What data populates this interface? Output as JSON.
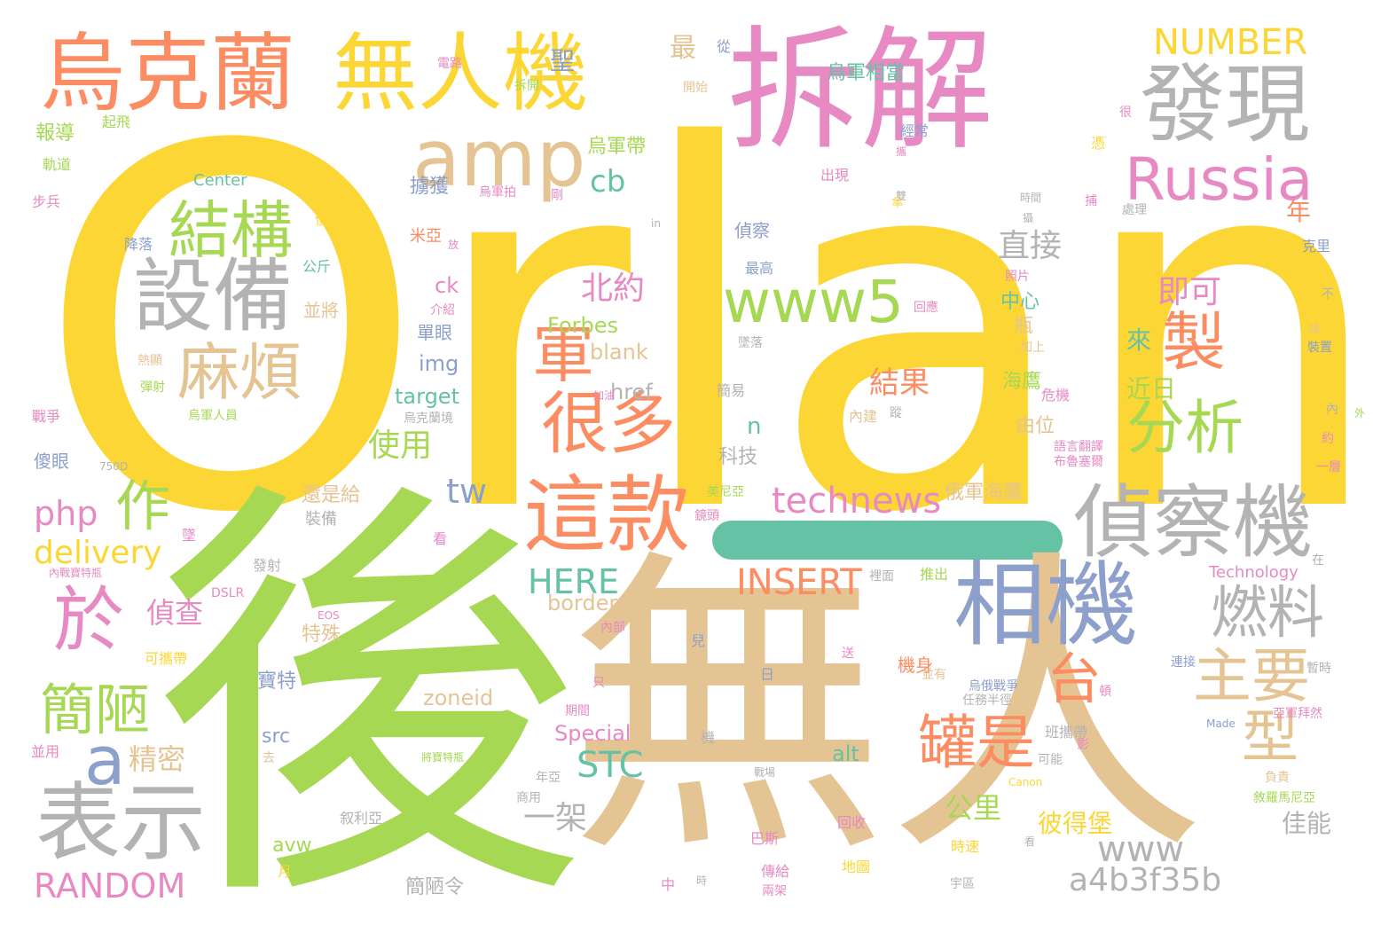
{
  "palette": {
    "yellow": "#fcd634",
    "green": "#a6d854",
    "tan": "#e5c494",
    "pink": "#e78ac3",
    "gray": "#b3b3b3",
    "orange": "#fc8d62",
    "blue": "#8da0cb",
    "teal": "#66c2a5"
  },
  "words": [
    {
      "text": "Orlan",
      "color": "yellow"
    },
    {
      "text": "後",
      "color": "green"
    },
    {
      "text": "無人",
      "color": "tan"
    },
    {
      "text": "拆解",
      "color": "pink"
    },
    {
      "text": "烏克蘭",
      "color": "orange"
    },
    {
      "text": "無人機",
      "color": "yellow"
    },
    {
      "text": "發現",
      "color": "gray"
    },
    {
      "text": "amp",
      "color": "tan"
    },
    {
      "text": "Russia",
      "color": "pink"
    },
    {
      "text": "設備",
      "color": "gray"
    },
    {
      "text": "結構",
      "color": "green"
    },
    {
      "text": "麻煩",
      "color": "tan"
    },
    {
      "text": "www5",
      "color": "green"
    },
    {
      "text": "偵察機",
      "color": "gray"
    },
    {
      "text": "這款",
      "color": "orange"
    },
    {
      "text": "相機",
      "color": "blue"
    },
    {
      "text": "表示",
      "color": "gray"
    },
    {
      "text": "於",
      "color": "pink"
    },
    {
      "text": "很多",
      "color": "orange"
    },
    {
      "text": "軍",
      "color": "orange"
    },
    {
      "text": "製",
      "color": "orange"
    },
    {
      "text": "分析",
      "color": "green"
    },
    {
      "text": "主要",
      "color": "tan"
    },
    {
      "text": "燃料",
      "color": "gray"
    },
    {
      "text": "罐是",
      "color": "orange"
    },
    {
      "text": "型",
      "color": "tan"
    },
    {
      "text": "台",
      "color": "orange"
    },
    {
      "text": "簡陋",
      "color": "green"
    },
    {
      "text": "a",
      "color": "blue"
    },
    {
      "text": "作",
      "color": "green"
    },
    {
      "text": "technews",
      "color": "pink"
    },
    {
      "text": "NUMBER",
      "color": "yellow"
    },
    {
      "text": "a4b3f35b",
      "color": "gray"
    },
    {
      "text": "www",
      "color": "gray"
    },
    {
      "text": "RANDOM",
      "color": "pink"
    },
    {
      "text": "STC",
      "color": "teal"
    },
    {
      "text": "INSERT",
      "color": "orange"
    },
    {
      "text": "HERE",
      "color": "teal"
    },
    {
      "text": "delivery",
      "color": "yellow"
    },
    {
      "text": "php",
      "color": "pink"
    },
    {
      "text": "tw",
      "color": "blue"
    },
    {
      "text": "cb",
      "color": "teal"
    },
    {
      "text": "直接",
      "color": "gray"
    },
    {
      "text": "即可",
      "color": "pink"
    },
    {
      "text": "北約",
      "color": "pink"
    },
    {
      "text": "結果",
      "color": "orange"
    },
    {
      "text": "使用",
      "color": "green"
    },
    {
      "text": "偵查",
      "color": "pink"
    },
    {
      "text": "精密",
      "color": "tan"
    },
    {
      "text": "一架",
      "color": "gray"
    },
    {
      "text": "公里",
      "color": "green"
    },
    {
      "text": "彼得堡",
      "color": "yellow"
    },
    {
      "text": "佳能",
      "color": "gray"
    },
    {
      "text": "近日",
      "color": "green"
    },
    {
      "text": "來",
      "color": "teal"
    },
    {
      "text": "年",
      "color": "orange"
    },
    {
      "text": "最",
      "color": "tan"
    },
    {
      "text": "聖",
      "color": "blue"
    },
    {
      "text": "Forbes",
      "color": "green"
    },
    {
      "text": "blank",
      "color": "tan"
    },
    {
      "text": "img",
      "color": "blue"
    },
    {
      "text": "ck",
      "color": "pink"
    },
    {
      "text": "target",
      "color": "teal"
    },
    {
      "text": "href",
      "color": "gray"
    },
    {
      "text": "n",
      "color": "teal"
    },
    {
      "text": "border",
      "color": "tan"
    },
    {
      "text": "zoneid",
      "color": "tan"
    },
    {
      "text": "Special",
      "color": "pink"
    },
    {
      "text": "src",
      "color": "blue"
    },
    {
      "text": "alt",
      "color": "teal"
    },
    {
      "text": "avw",
      "color": "green"
    },
    {
      "text": "Center",
      "color": "teal"
    },
    {
      "text": "Technology",
      "color": "pink"
    },
    {
      "text": "烏軍相當",
      "color": "teal"
    },
    {
      "text": "烏軍帶",
      "color": "green"
    },
    {
      "text": "擄獲",
      "color": "blue"
    },
    {
      "text": "報導",
      "color": "green"
    },
    {
      "text": "科技",
      "color": "gray"
    },
    {
      "text": "俄軍海鷹",
      "color": "tan"
    },
    {
      "text": "海鷹",
      "color": "green"
    },
    {
      "text": "由位",
      "color": "tan"
    },
    {
      "text": "中心",
      "color": "teal"
    },
    {
      "text": "瓶",
      "color": "tan"
    },
    {
      "text": "機身",
      "color": "orange"
    },
    {
      "text": "特殊",
      "color": "tan"
    },
    {
      "text": "寶特",
      "color": "blue"
    },
    {
      "text": "傻眼",
      "color": "blue"
    },
    {
      "text": "還是給",
      "color": "tan"
    },
    {
      "text": "簡陋令",
      "color": "gray"
    },
    {
      "text": "單眼",
      "color": "blue"
    },
    {
      "text": "偵察",
      "color": "blue"
    },
    {
      "text": "並將",
      "color": "tan"
    },
    {
      "text": "米亞",
      "color": "orange"
    },
    {
      "text": "降落",
      "color": "blue"
    },
    {
      "text": "步兵",
      "color": "pink"
    },
    {
      "text": "軌道",
      "color": "green"
    },
    {
      "text": "起飛",
      "color": "green"
    },
    {
      "text": "電路",
      "color": "pink"
    },
    {
      "text": "拆開",
      "color": "green"
    },
    {
      "text": "開始",
      "color": "tan"
    },
    {
      "text": "從",
      "color": "blue"
    },
    {
      "text": "烏軍拍",
      "color": "pink"
    },
    {
      "text": "剛",
      "color": "pink"
    },
    {
      "text": "出現",
      "color": "pink"
    },
    {
      "text": "經常",
      "color": "blue"
    },
    {
      "text": "很",
      "color": "pink"
    },
    {
      "text": "克里",
      "color": "blue"
    },
    {
      "text": "不",
      "color": "gray"
    },
    {
      "text": "裝置",
      "color": "blue"
    },
    {
      "text": "內",
      "color": "gray"
    },
    {
      "text": "約",
      "color": "pink"
    },
    {
      "text": "一層",
      "color": "pink"
    },
    {
      "text": "公斤",
      "color": "teal"
    },
    {
      "text": "介紹",
      "color": "pink"
    },
    {
      "text": "熱顯",
      "color": "tan"
    },
    {
      "text": "彈射",
      "color": "green"
    },
    {
      "text": "戰爭",
      "color": "pink"
    },
    {
      "text": "烏軍人員",
      "color": "green"
    },
    {
      "text": "可攜帶",
      "color": "yellow"
    },
    {
      "text": "內戰寶特瓶",
      "color": "pink"
    },
    {
      "text": "DSLR",
      "color": "pink"
    },
    {
      "text": "EOS",
      "color": "pink"
    },
    {
      "text": "並用",
      "color": "pink"
    },
    {
      "text": "發射",
      "color": "gray"
    },
    {
      "text": "推出",
      "color": "green"
    },
    {
      "text": "裡面",
      "color": "gray"
    },
    {
      "text": "叙利亞",
      "color": "gray"
    },
    {
      "text": "回收",
      "color": "pink"
    },
    {
      "text": "巴斯",
      "color": "pink"
    },
    {
      "text": "時速",
      "color": "yellow"
    },
    {
      "text": "傳給",
      "color": "pink"
    },
    {
      "text": "地圖",
      "color": "yellow"
    },
    {
      "text": "兩架",
      "color": "pink"
    },
    {
      "text": "宇區",
      "color": "gray"
    },
    {
      "text": "負責",
      "color": "tan"
    },
    {
      "text": "敘羅馬尼亞",
      "color": "green"
    },
    {
      "text": "亞軍拜然",
      "color": "pink"
    },
    {
      "text": "班攜帶",
      "color": "gray"
    },
    {
      "text": "可能",
      "color": "gray"
    },
    {
      "text": "Made",
      "color": "blue"
    },
    {
      "text": "Canon",
      "color": "yellow"
    },
    {
      "text": "危機",
      "color": "pink"
    },
    {
      "text": "加上",
      "color": "tan"
    },
    {
      "text": "照片",
      "color": "pink"
    },
    {
      "text": "處理",
      "color": "gray"
    },
    {
      "text": "時間",
      "color": "gray"
    },
    {
      "text": "墜落",
      "color": "gray"
    },
    {
      "text": "最高",
      "color": "blue"
    },
    {
      "text": "簡易",
      "color": "gray"
    },
    {
      "text": "鏡頭",
      "color": "pink"
    },
    {
      "text": "美尼亞",
      "color": "green"
    },
    {
      "text": "烏俄戰爭",
      "color": "blue"
    },
    {
      "text": "任務半徑",
      "color": "gray"
    },
    {
      "text": "內部",
      "color": "pink"
    },
    {
      "text": "期間",
      "color": "pink"
    },
    {
      "text": "年亞",
      "color": "gray"
    },
    {
      "text": "商用",
      "color": "gray"
    },
    {
      "text": "機",
      "color": "gray"
    },
    {
      "text": "只",
      "color": "pink"
    },
    {
      "text": "日",
      "color": "blue"
    },
    {
      "text": "送",
      "color": "pink"
    },
    {
      "text": "兒",
      "color": "blue"
    },
    {
      "text": "影",
      "color": "pink"
    },
    {
      "text": "頓",
      "color": "pink"
    },
    {
      "text": "暫時",
      "color": "gray"
    },
    {
      "text": "連接",
      "color": "blue"
    },
    {
      "text": "語言翻譯",
      "color": "pink"
    },
    {
      "text": "布魯塞爾",
      "color": "pink"
    },
    {
      "text": "內建",
      "color": "tan"
    },
    {
      "text": "蹤",
      "color": "gray"
    },
    {
      "text": "看",
      "color": "pink"
    },
    {
      "text": "去",
      "color": "tan"
    },
    {
      "text": "墜",
      "color": "pink"
    },
    {
      "text": "裝備",
      "color": "gray"
    },
    {
      "text": "在",
      "color": "gray"
    },
    {
      "text": "中",
      "color": "pink"
    },
    {
      "text": "月",
      "color": "yellow"
    },
    {
      "text": "將寶特瓶",
      "color": "green"
    },
    {
      "text": "750D",
      "color": "gray"
    },
    {
      "text": "in",
      "color": "gray"
    },
    {
      "text": "烏克蘭境",
      "color": "gray"
    },
    {
      "text": "加油",
      "color": "pink"
    },
    {
      "text": "捕",
      "color": "pink"
    },
    {
      "text": "回應",
      "color": "pink"
    },
    {
      "text": "傘",
      "color": "yellow"
    },
    {
      "text": "憑",
      "color": "yellow"
    },
    {
      "text": "攝",
      "color": "gray"
    },
    {
      "text": "外",
      "color": "green"
    },
    {
      "text": "放",
      "color": "pink"
    },
    {
      "text": "價",
      "color": "yellow"
    },
    {
      "text": "並有",
      "color": "tan"
    },
    {
      "text": "時",
      "color": "gray"
    },
    {
      "text": "看",
      "color": "gray"
    },
    {
      "text": "攜",
      "color": "pink"
    },
    {
      "text": "雙",
      "color": "gray"
    },
    {
      "text": "據",
      "color": "tan"
    },
    {
      "text": "數",
      "color": "yellow"
    },
    {
      "text": "戰場",
      "color": "gray"
    }
  ]
}
